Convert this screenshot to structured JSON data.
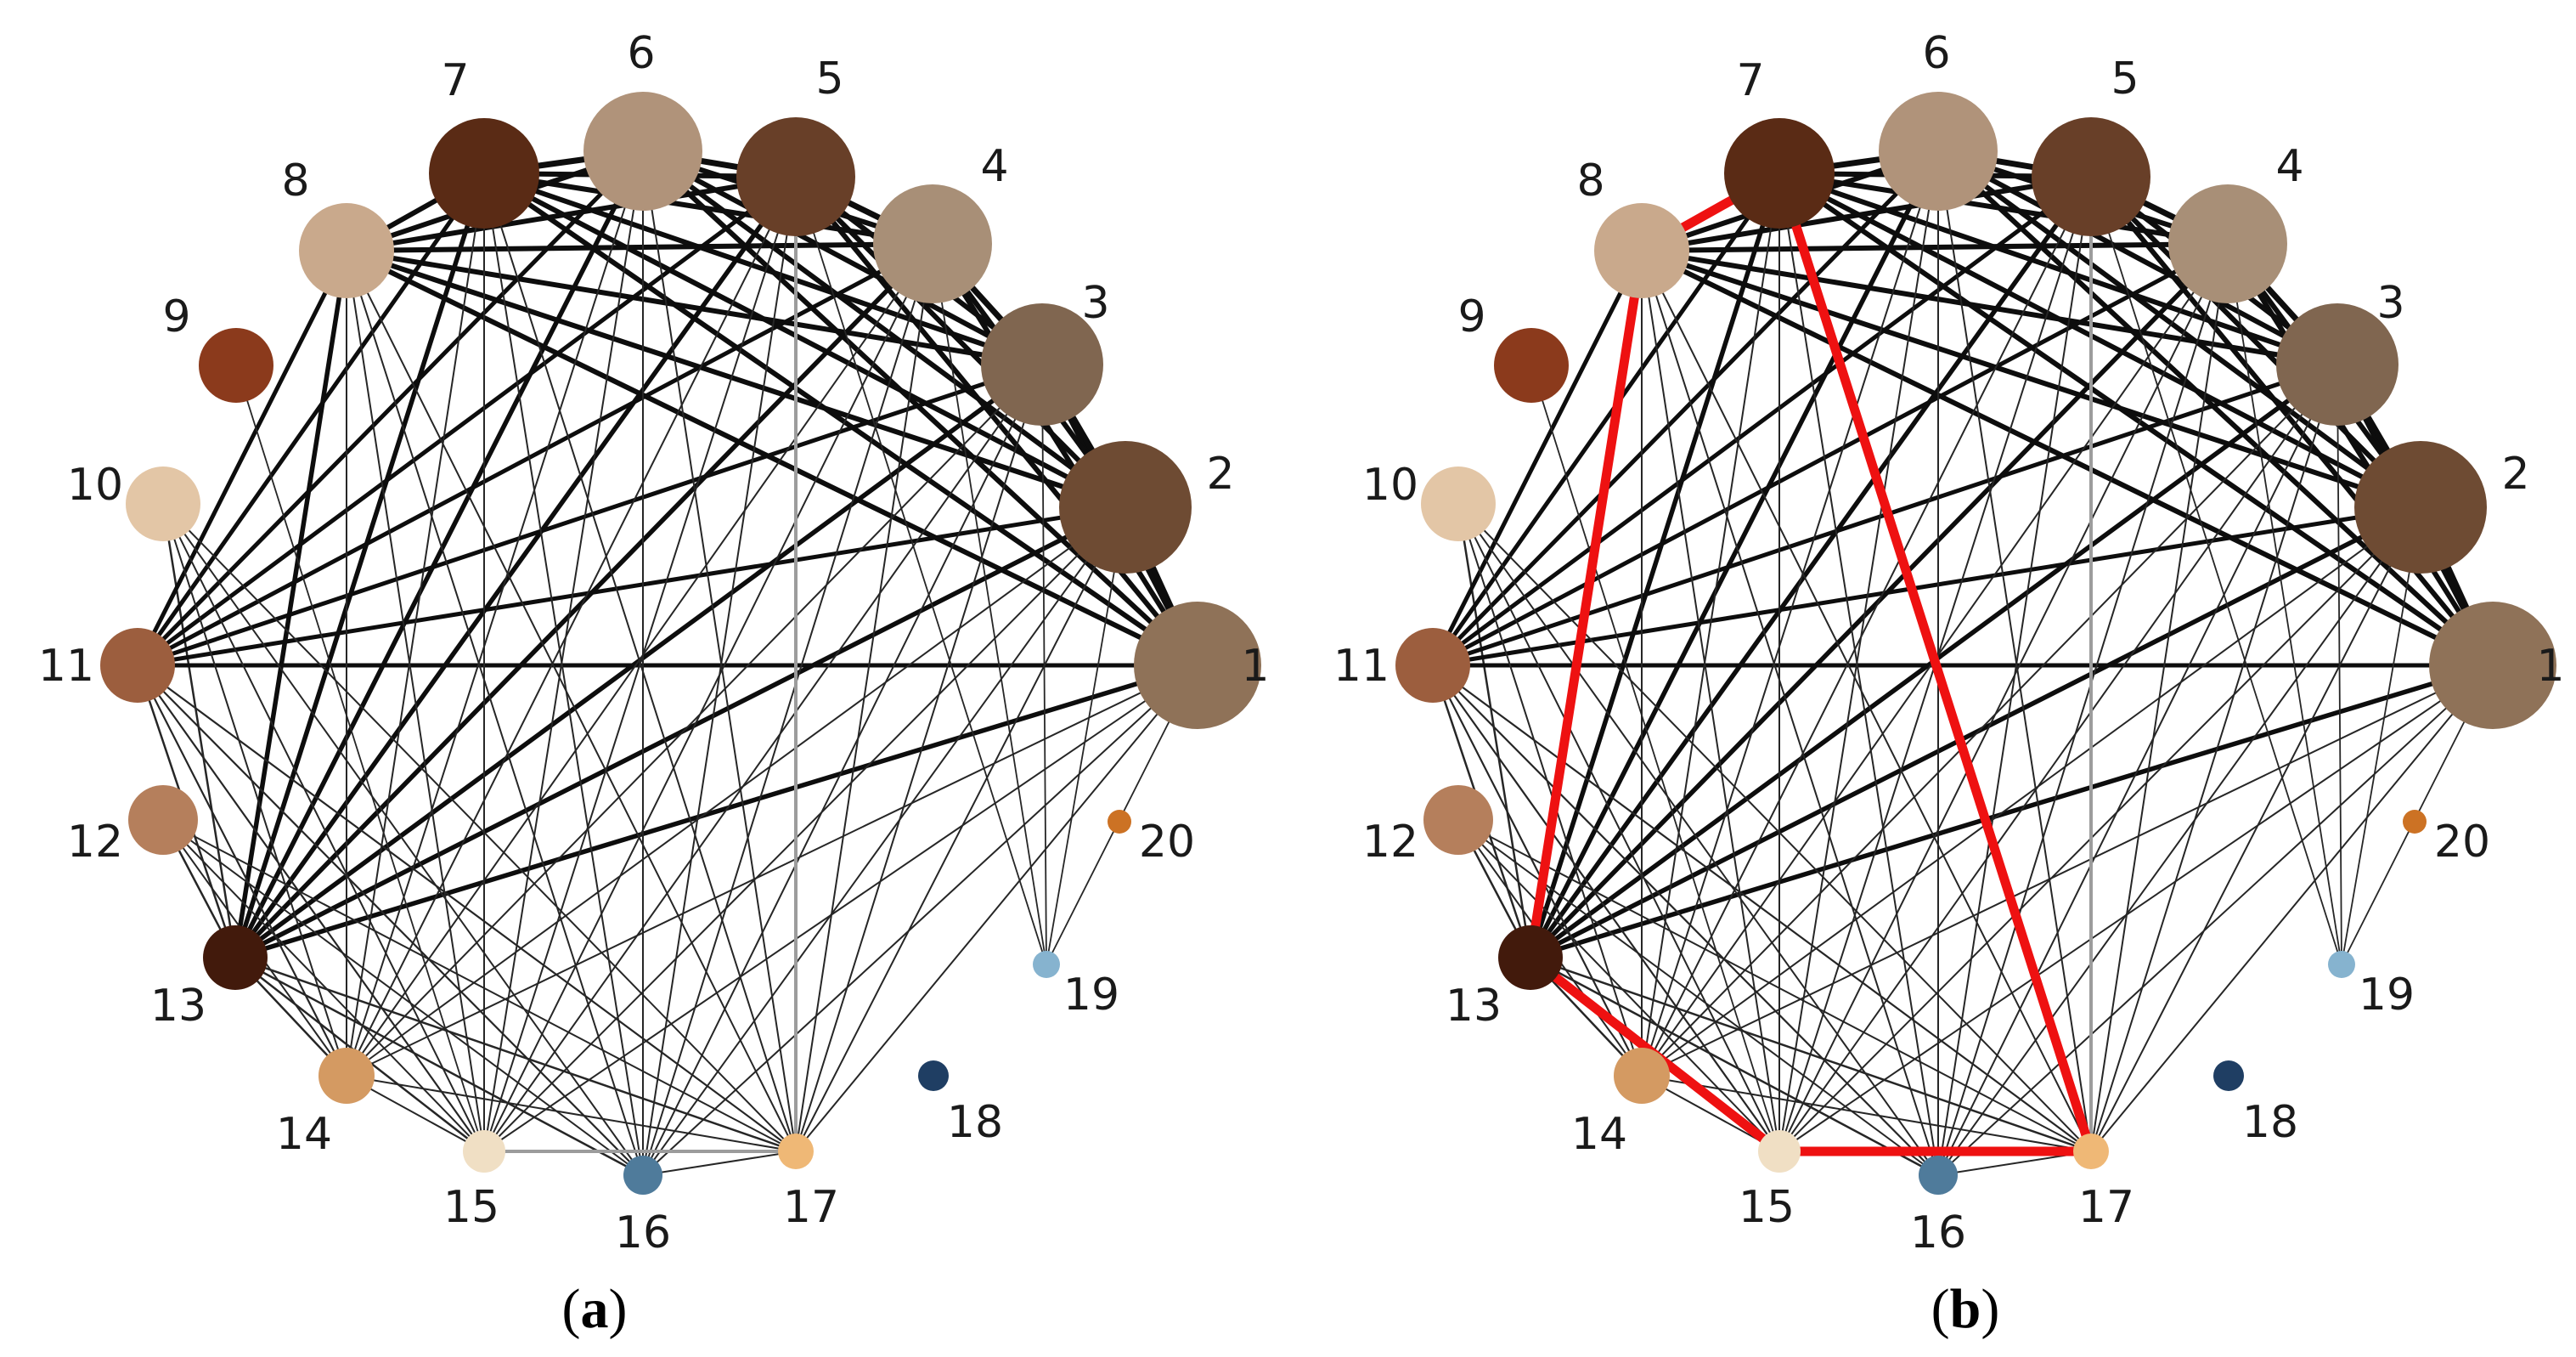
{
  "panels": [
    {
      "id": "a",
      "caption_open": "(",
      "caption_letter": "a",
      "caption_close": ")"
    },
    {
      "id": "b",
      "caption_open": "(",
      "caption_letter": "b",
      "caption_close": ")"
    }
  ],
  "nodes": [
    {
      "id": "1",
      "label": "1",
      "color": "#8f7258"
    },
    {
      "id": "2",
      "label": "2",
      "color": "#6e4b33"
    },
    {
      "id": "3",
      "label": "3",
      "color": "#806650"
    },
    {
      "id": "4",
      "label": "4",
      "color": "#a88f77"
    },
    {
      "id": "5",
      "label": "5",
      "color": "#683f28"
    },
    {
      "id": "6",
      "label": "6",
      "color": "#b0937a"
    },
    {
      "id": "7",
      "label": "7",
      "color": "#5a2b15"
    },
    {
      "id": "8",
      "label": "8",
      "color": "#c9a98c"
    },
    {
      "id": "9",
      "label": "9",
      "color": "#8b3a1c"
    },
    {
      "id": "10",
      "label": "10",
      "color": "#e3c6a6"
    },
    {
      "id": "11",
      "label": "11",
      "color": "#9c5e3e"
    },
    {
      "id": "12",
      "label": "12",
      "color": "#b57f5c"
    },
    {
      "id": "13",
      "label": "13",
      "color": "#421a0c"
    },
    {
      "id": "14",
      "label": "14",
      "color": "#d49a62"
    },
    {
      "id": "15",
      "label": "15",
      "color": "#f0dfc4"
    },
    {
      "id": "16",
      "label": "16",
      "color": "#4f7b9b"
    },
    {
      "id": "17",
      "label": "17",
      "color": "#efb876"
    },
    {
      "id": "18",
      "label": "18",
      "color": "#1f3e63"
    },
    {
      "id": "19",
      "label": "19",
      "color": "#86b3cf"
    },
    {
      "id": "20",
      "label": "20",
      "color": "#cc7224"
    }
  ],
  "highlight_cycle": [
    "7",
    "8",
    "13",
    "15",
    "17",
    "7"
  ],
  "highlight_color": "#ee1111"
}
